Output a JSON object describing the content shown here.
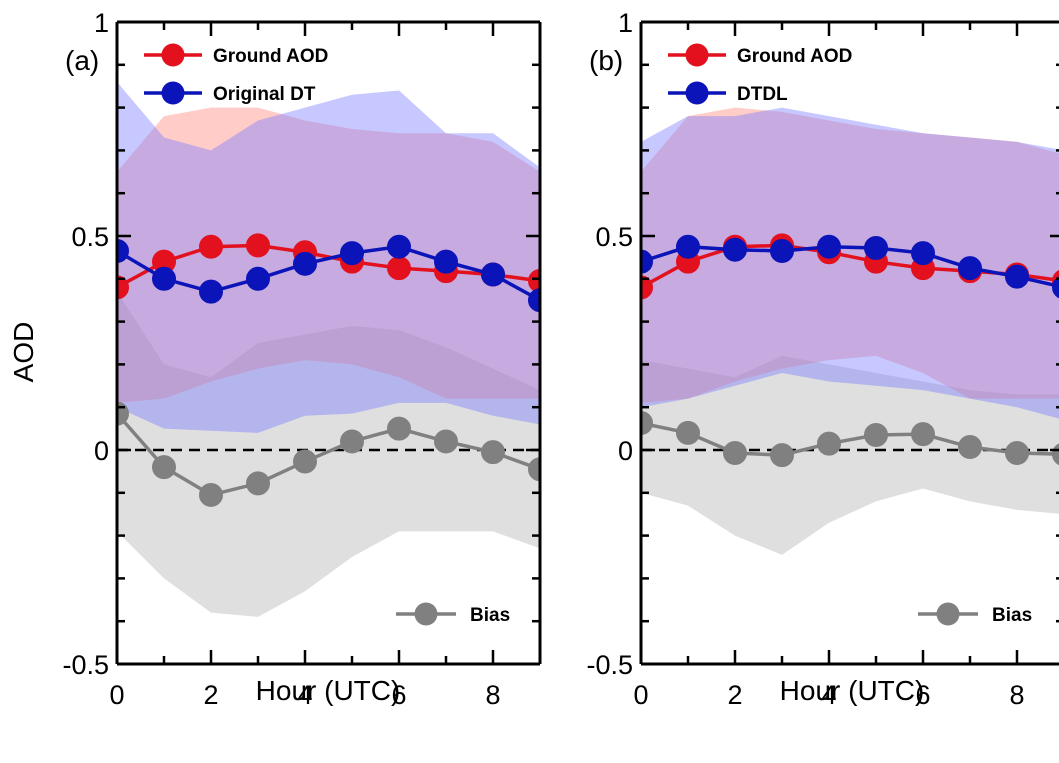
{
  "chart_data": [
    {
      "type": "line",
      "panel_label": "(a)",
      "xlabel": "Hour (UTC)",
      "ylabel": "AOD",
      "xlim": [
        0,
        9
      ],
      "ylim": [
        -0.5,
        1
      ],
      "xticks": [
        0,
        2,
        4,
        6,
        8
      ],
      "yticks": [
        -0.5,
        0,
        0.5,
        1
      ],
      "ytick_labels": [
        "-0.5",
        "0",
        "0.5",
        "1"
      ],
      "zero_line": "dashed",
      "grid": false,
      "x": [
        0,
        1,
        2,
        3,
        4,
        5,
        6,
        7,
        8,
        9
      ],
      "series": [
        {
          "name": "Ground AOD",
          "color": "#e3101e",
          "values": [
            0.38,
            0.44,
            0.475,
            0.478,
            0.462,
            0.44,
            0.425,
            0.418,
            0.41,
            0.395
          ],
          "band_lower": [
            0.11,
            0.12,
            0.16,
            0.19,
            0.21,
            0.2,
            0.17,
            0.12,
            0.12,
            0.12
          ],
          "band_upper": [
            0.65,
            0.78,
            0.8,
            0.8,
            0.77,
            0.75,
            0.74,
            0.74,
            0.72,
            0.65
          ]
        },
        {
          "name": "Original DT",
          "color": "#0a14b8",
          "values": [
            0.465,
            0.4,
            0.37,
            0.4,
            0.435,
            0.46,
            0.475,
            0.44,
            0.41,
            0.35
          ],
          "band_lower": [
            0.1,
            0.05,
            0.045,
            0.04,
            0.08,
            0.085,
            0.11,
            0.11,
            0.08,
            0.06
          ],
          "band_upper": [
            0.86,
            0.73,
            0.7,
            0.77,
            0.8,
            0.83,
            0.84,
            0.74,
            0.74,
            0.66
          ]
        },
        {
          "name": "Bias",
          "color": "#808080",
          "values": [
            0.085,
            -0.04,
            -0.105,
            -0.078,
            -0.027,
            0.02,
            0.05,
            0.02,
            -0.005,
            -0.045
          ],
          "band_lower": [
            -0.19,
            -0.3,
            -0.38,
            -0.39,
            -0.33,
            -0.25,
            -0.19,
            -0.19,
            -0.19,
            -0.23
          ],
          "band_upper": [
            0.37,
            0.2,
            0.17,
            0.25,
            0.27,
            0.29,
            0.28,
            0.24,
            0.19,
            0.14
          ]
        }
      ],
      "legend_top": [
        "Ground AOD",
        "Original DT"
      ],
      "legend_bottom": [
        "Bias"
      ]
    },
    {
      "type": "line",
      "panel_label": "(b)",
      "xlabel": "Hour (UTC)",
      "ylabel": "",
      "xlim": [
        0,
        9
      ],
      "ylim": [
        -0.5,
        1
      ],
      "xticks": [
        0,
        2,
        4,
        6,
        8
      ],
      "yticks": [
        -0.5,
        0,
        0.5,
        1
      ],
      "ytick_labels": [
        "-0.5",
        "0",
        "0.5",
        "1"
      ],
      "zero_line": "dashed",
      "grid": false,
      "x": [
        0,
        1,
        2,
        3,
        4,
        5,
        6,
        7,
        8,
        9
      ],
      "series": [
        {
          "name": "Ground AOD",
          "color": "#e3101e",
          "values": [
            0.38,
            0.44,
            0.475,
            0.478,
            0.462,
            0.44,
            0.425,
            0.418,
            0.41,
            0.395
          ],
          "band_lower": [
            0.11,
            0.12,
            0.16,
            0.19,
            0.21,
            0.22,
            0.18,
            0.12,
            0.12,
            0.12
          ],
          "band_upper": [
            0.65,
            0.78,
            0.8,
            0.79,
            0.77,
            0.75,
            0.74,
            0.73,
            0.72,
            0.69
          ]
        },
        {
          "name": "DTDL",
          "color": "#0a14b8",
          "values": [
            0.44,
            0.475,
            0.468,
            0.465,
            0.475,
            0.472,
            0.46,
            0.425,
            0.405,
            0.38
          ],
          "band_lower": [
            0.1,
            0.12,
            0.15,
            0.18,
            0.16,
            0.15,
            0.14,
            0.12,
            0.1,
            0.07
          ],
          "band_upper": [
            0.72,
            0.78,
            0.78,
            0.8,
            0.78,
            0.76,
            0.74,
            0.73,
            0.72,
            0.7
          ]
        },
        {
          "name": "Bias",
          "color": "#808080",
          "values": [
            0.063,
            0.04,
            -0.007,
            -0.012,
            0.015,
            0.035,
            0.037,
            0.007,
            -0.007,
            -0.01
          ],
          "band_lower": [
            -0.1,
            -0.13,
            -0.2,
            -0.245,
            -0.17,
            -0.12,
            -0.09,
            -0.12,
            -0.14,
            -0.15
          ],
          "band_upper": [
            0.21,
            0.19,
            0.17,
            0.22,
            0.2,
            0.18,
            0.16,
            0.14,
            0.13,
            0.13
          ]
        }
      ],
      "legend_top": [
        "Ground AOD",
        "DTDL"
      ],
      "legend_bottom": [
        "Bias"
      ]
    }
  ]
}
